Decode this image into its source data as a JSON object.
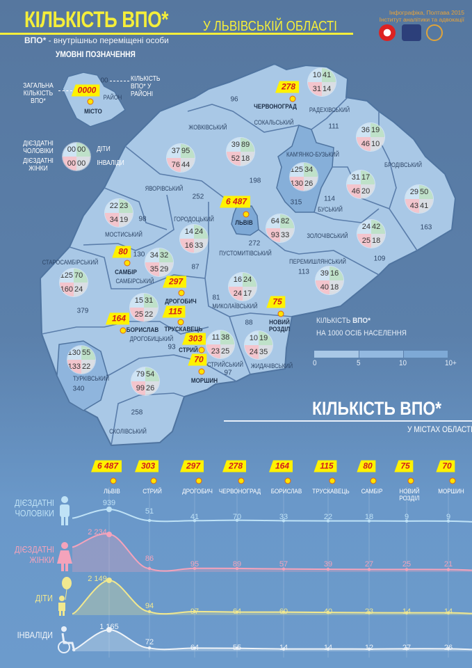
{
  "header": {
    "title": "КІЛЬКІСТЬ ВПО*",
    "title_sub": "У ЛЬВІВСЬКІЙ ОБЛАСТІ",
    "abbr_key": "ВПО*",
    "abbr_text": " - внутрішньо переміщені особи",
    "credit_line1": "Інфографіка, Полтава 2015",
    "credit_line2": "Інститут аналітики та адвокації",
    "logos": [
      "emblem-red-logo",
      "coat-of-arms-logo",
      "institute-logo"
    ]
  },
  "legend": {
    "title": "УМОВНІ ПОЗНАЧЕННЯ",
    "total_label": "ЗАГАЛЬНА КІЛЬКІСТЬ ВПО*",
    "flag_sample": "0000",
    "district_count_sample": "00",
    "district_count_label": "КІЛЬКІСТЬ ВПО* У РАЙОНІ",
    "district_word": "РАЙОН",
    "city_word": "МІСТО",
    "quad_sample": [
      "00",
      "00",
      "00",
      "00"
    ],
    "men_label": "ДІЄЗДАТНІ ЧОЛОВІКИ",
    "children_label": "ДІТИ",
    "women_label": "ДІЄЗДАТНІ ЖІНКИ",
    "disabled_label": "ІНВАЛІДИ",
    "quad_colors": {
      "men": "#cfe4f4",
      "children": "#bfe1c9",
      "women": "#f3c5cd",
      "disabled": "#dadee4"
    }
  },
  "map": {
    "districts": [
      "ЖОВКІВСЬКИЙ",
      "СОКАЛЬСЬКИЙ",
      "РАДЕХІВСЬКИЙ",
      "КАМ'ЯНКО-БУЗЬКИЙ",
      "БРОДІВСЬКИЙ",
      "ЯВОРІВСЬКИЙ",
      "ГОРОДОЦЬКИЙ",
      "МОСТИСЬКИЙ",
      "БУСЬКИЙ",
      "ЗОЛОЧІВСЬКИЙ",
      "ПУСТОМИТІВСЬКИЙ",
      "ПЕРЕМИШЛЯНСЬКИЙ",
      "СТАРОСАМБІРСЬКИЙ",
      "САМБІРСЬКИЙ",
      "МИКОЛАЇВСЬКИЙ",
      "ДРОГОБИЦЬКИЙ",
      "ТУРКІВСЬКИЙ",
      "СТРИЙСЬКИЙ",
      "ЖИДАЧІВСЬКИЙ",
      "СКОЛІВСЬКИЙ"
    ],
    "district_totals": [
      "96",
      "111",
      "198",
      "252",
      "315",
      "114",
      "98",
      "163",
      "272",
      "130",
      "109",
      "87",
      "113",
      "81",
      "379",
      "88",
      "93",
      "97",
      "340",
      "258"
    ],
    "quads": [
      [
        "10",
        "41",
        "31",
        "14"
      ],
      [
        "36",
        "19",
        "46",
        "10"
      ],
      [
        "39",
        "89",
        "52",
        "18"
      ],
      [
        "37",
        "95",
        "76",
        "44"
      ],
      [
        "125",
        "34",
        "130",
        "26"
      ],
      [
        "31",
        "17",
        "46",
        "20"
      ],
      [
        "29",
        "50",
        "43",
        "41"
      ],
      [
        "22",
        "23",
        "34",
        "19"
      ],
      [
        "64",
        "82",
        "93",
        "33"
      ],
      [
        "14",
        "24",
        "16",
        "33"
      ],
      [
        "24",
        "42",
        "25",
        "18"
      ],
      [
        "34",
        "32",
        "35",
        "29"
      ],
      [
        "125",
        "70",
        "160",
        "24"
      ],
      [
        "39",
        "16",
        "40",
        "18"
      ],
      [
        "16",
        "24",
        "24",
        "17"
      ],
      [
        "15",
        "31",
        "25",
        "22"
      ],
      [
        "11",
        "38",
        "23",
        "25"
      ],
      [
        "10",
        "19",
        "24",
        "35"
      ],
      [
        "130",
        "55",
        "133",
        "22"
      ],
      [
        "79",
        "54",
        "99",
        "26"
      ]
    ],
    "cities": [
      {
        "count": "278",
        "name": "ЧЕРВОНОГРАД"
      },
      {
        "count": "6 487",
        "name": "ЛЬВІВ"
      },
      {
        "count": "80",
        "name": "САМБІР"
      },
      {
        "count": "297",
        "name": "ДРОГОБИЧ"
      },
      {
        "count": "115",
        "name": "ТРУСКАВЕЦЬ"
      },
      {
        "count": "164",
        "name": "БОРИСЛАВ"
      },
      {
        "count": "303",
        "name": "СТРИЙ"
      },
      {
        "count": "70",
        "name": "МОРШИН"
      },
      {
        "count": "75",
        "name": "НОВИЙ РОЗДІЛ"
      }
    ],
    "density_legend": {
      "line1_a": "КІЛЬКІСТЬ ",
      "line1_b": "ВПО*",
      "line2": "НА 1000 ОСІБ НАСЕЛЕННЯ",
      "ticks": [
        "0",
        "5",
        "10",
        "10+"
      ],
      "colors": [
        "#a9c8e6",
        "#93b9e0",
        "#7ea9d6"
      ]
    },
    "colors": {
      "fill": "#a9c8e6",
      "dark_fill": "#7ea9d6",
      "border": "#4f74a0"
    }
  },
  "cities_section": {
    "title": "КІЛЬКІСТЬ ВПО*",
    "subtitle": "У МІСТАХ ОБЛАСТІ"
  },
  "chart_data": {
    "type": "line",
    "categories": [
      "ЛЬВІВ",
      "СТРИЙ",
      "ДРОГОБИЧ",
      "ЧЕРВОНОГРАД",
      "БОРИСЛАВ",
      "ТРУСКАВЕЦЬ",
      "САМБІР",
      "НОВИЙ РОЗДІЛ",
      "МОРШИН"
    ],
    "category_totals": [
      "6 487",
      "303",
      "297",
      "278",
      "164",
      "115",
      "80",
      "75",
      "70"
    ],
    "series": [
      {
        "name": "ДІЄЗДАТНІ ЧОЛОВІКИ",
        "icon": "man-icon",
        "color": "#bfe2f6",
        "values": [
          939,
          51,
          41,
          70,
          33,
          22,
          18,
          9,
          9
        ],
        "labels": [
          "939",
          "51",
          "41",
          "70",
          "33",
          "22",
          "18",
          "9",
          "9"
        ]
      },
      {
        "name": "ДІЄЗДАТНІ ЖІНКИ",
        "icon": "woman-icon",
        "color": "#f4a3bb",
        "values": [
          2234,
          86,
          95,
          89,
          57,
          39,
          27,
          25,
          21
        ],
        "labels": [
          "2 234",
          "86",
          "95",
          "89",
          "57",
          "39",
          "27",
          "25",
          "21"
        ]
      },
      {
        "name": "ДІТИ",
        "icon": "child-balloon-icon",
        "color": "#f1e88f",
        "values": [
          2149,
          94,
          97,
          64,
          60,
          40,
          23,
          14,
          14
        ],
        "labels": [
          "2 149",
          "94",
          "97",
          "64",
          "60",
          "40",
          "23",
          "14",
          "14"
        ]
      },
      {
        "name": "ІНВАЛІДИ",
        "icon": "wheelchair-icon",
        "color": "#eef3f8",
        "values": [
          1165,
          72,
          64,
          55,
          14,
          14,
          12,
          27,
          26
        ],
        "labels": [
          "1 165",
          "72",
          "64",
          "55",
          "14",
          "14",
          "12",
          "27",
          "26"
        ]
      }
    ]
  }
}
